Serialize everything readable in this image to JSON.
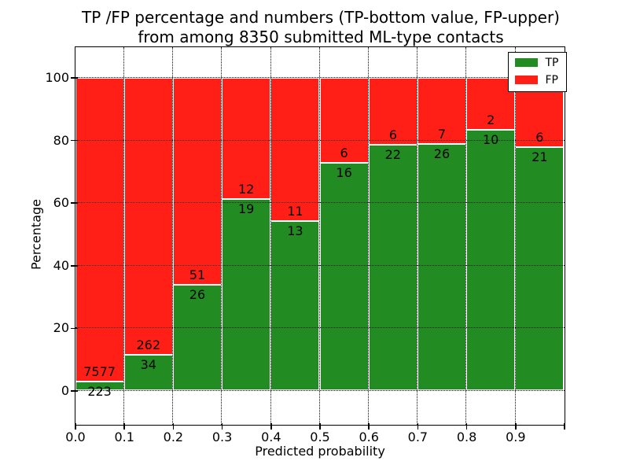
{
  "title": {
    "line1": "TP /FP percentage and numbers (TP-bottom value, FP-upper)",
    "line2": "from among 8350 submitted ML-type contacts"
  },
  "axes": {
    "xlabel": "Predicted probability",
    "ylabel": "Percentage",
    "x_tick_labels": [
      "0.0",
      "0.1",
      "0.2",
      "0.3",
      "0.4",
      "0.5",
      "0.6",
      "0.7",
      "0.8",
      "0.9"
    ],
    "y_tick_labels": [
      "0",
      "20",
      "40",
      "60",
      "80",
      "100"
    ],
    "y_tick_values": [
      0,
      20,
      40,
      60,
      80,
      100
    ],
    "xlim": [
      0.0,
      1.0
    ],
    "ylim": [
      -11,
      110
    ],
    "grid": "dotted"
  },
  "legend": {
    "items": [
      {
        "label": "TP",
        "color": "#228b22"
      },
      {
        "label": "FP",
        "color": "#ff1f17"
      }
    ],
    "position": "upper right"
  },
  "chart_data": {
    "type": "bar",
    "stacked": true,
    "normalized": "percent (TP+FP = 100% per bin)",
    "title": "TP /FP percentage and numbers (TP-bottom value, FP-upper) from among 8350 submitted ML-type contacts",
    "xlabel": "Predicted probability",
    "ylabel": "Percentage",
    "total_contacts": 8350,
    "bin_width": 0.1,
    "bin_starts": [
      0.0,
      0.1,
      0.2,
      0.3,
      0.4,
      0.5,
      0.6,
      0.7,
      0.8,
      0.9
    ],
    "series": [
      {
        "name": "TP",
        "color": "#228b22",
        "values": [
          223,
          34,
          26,
          19,
          13,
          16,
          22,
          26,
          10,
          21
        ]
      },
      {
        "name": "FP",
        "color": "#ff1f17",
        "values": [
          7577,
          262,
          51,
          12,
          11,
          6,
          6,
          7,
          2,
          6
        ]
      }
    ],
    "tp_percent_per_bin": [
      2.86,
      11.49,
      33.77,
      61.29,
      54.17,
      72.73,
      78.57,
      78.79,
      83.33,
      77.78
    ],
    "legend_position": "upper right"
  },
  "colors": {
    "background": "#ffffff",
    "frame": "#000000",
    "grid": "#0a0a0a",
    "bar_edge": "#ffffff",
    "text": "#000000"
  }
}
